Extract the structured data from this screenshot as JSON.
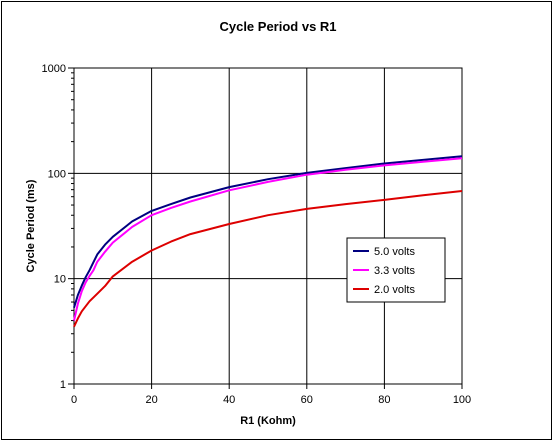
{
  "chart_data": {
    "type": "line",
    "title": "Cycle Period vs R1",
    "xlabel": "R1 (Kohm)",
    "ylabel": "Cycle Period (ms)",
    "xlim": [
      0,
      100
    ],
    "ylim": [
      1,
      1000
    ],
    "y_scale": "log",
    "x_ticks": [
      0,
      20,
      40,
      60,
      80,
      100
    ],
    "x_tick_labels": [
      "0",
      "20",
      "40",
      "60",
      "80",
      "100"
    ],
    "y_ticks": [
      1,
      10,
      100,
      1000
    ],
    "y_tick_labels": [
      "1",
      "10",
      "100",
      "1000"
    ],
    "grid": true,
    "legend_position": "right-middle",
    "series": [
      {
        "name": "5.0 volts",
        "color": "#000080",
        "x": [
          0,
          1,
          2,
          3,
          4,
          5,
          6,
          8,
          10,
          15,
          20,
          25,
          30,
          40,
          50,
          60,
          70,
          80,
          90,
          100
        ],
        "y": [
          5.3,
          7.0,
          8.6,
          10.3,
          12.0,
          14.3,
          17.0,
          21.0,
          25.0,
          35.0,
          44.0,
          51.0,
          59.0,
          74.0,
          88.0,
          101.0,
          112.0,
          124.0,
          134.0,
          145.0
        ]
      },
      {
        "name": "3.3 volts",
        "color": "#ff00ff",
        "x": [
          0,
          1,
          2,
          3,
          4,
          5,
          6,
          8,
          10,
          15,
          20,
          25,
          30,
          40,
          50,
          60,
          70,
          80,
          90,
          100
        ],
        "y": [
          4.0,
          5.8,
          7.6,
          9.2,
          10.6,
          12.0,
          14.5,
          18.0,
          22.0,
          31.0,
          40.0,
          47.0,
          54.0,
          69.0,
          83.0,
          97.0,
          108.0,
          119.0,
          129.0,
          139.0
        ]
      },
      {
        "name": "2.0 volts",
        "color": "#dd0000",
        "x": [
          0,
          1,
          2,
          4,
          6,
          8,
          10,
          15,
          20,
          25,
          30,
          40,
          50,
          60,
          70,
          80,
          90,
          100
        ],
        "y": [
          3.5,
          4.2,
          4.9,
          6.1,
          7.2,
          8.5,
          10.5,
          14.5,
          18.5,
          22.5,
          26.5,
          33.0,
          40.0,
          46.0,
          51.0,
          56.0,
          62.0,
          68.0
        ]
      }
    ]
  }
}
